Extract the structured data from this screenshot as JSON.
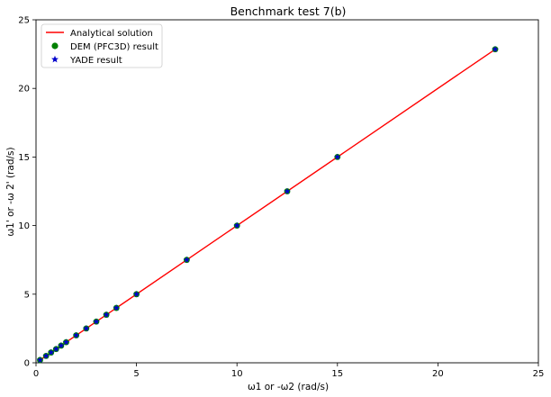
{
  "chart_data": {
    "type": "scatter",
    "title": "Benchmark test 7(b)",
    "xlabel": "ω1 or -ω2 (rad/s)",
    "ylabel": "ω1' or -ω 2' (rad/s)",
    "xlim": [
      0,
      25
    ],
    "ylim": [
      0,
      25
    ],
    "xticks": [
      0,
      5,
      10,
      15,
      20,
      25
    ],
    "yticks": [
      0,
      5,
      10,
      15,
      20,
      25
    ],
    "grid": false,
    "legend_position": "upper-left",
    "series": [
      {
        "name": "Analytical solution",
        "kind": "line",
        "color": "#ff0000",
        "x": [
          0.2,
          22.85
        ],
        "y": [
          0.2,
          22.85
        ]
      },
      {
        "name": "DEM (PFC3D) result",
        "kind": "marker-circle",
        "color": "#008000",
        "x": [
          0.2,
          0.5,
          0.75,
          1.0,
          1.25,
          1.5,
          2.0,
          2.5,
          3.0,
          3.5,
          4.0,
          5.0,
          7.5,
          10.0,
          12.5,
          15.0,
          22.85
        ],
        "y": [
          0.2,
          0.5,
          0.75,
          1.0,
          1.25,
          1.5,
          2.0,
          2.5,
          3.0,
          3.5,
          4.0,
          5.0,
          7.5,
          10.0,
          12.5,
          15.0,
          22.85
        ]
      },
      {
        "name": "YADE result",
        "kind": "marker-star",
        "color": "#0000cc",
        "x": [
          0.2,
          0.5,
          0.75,
          1.0,
          1.25,
          1.5,
          2.0,
          2.5,
          3.0,
          3.5,
          4.0,
          5.0,
          7.5,
          10.0,
          12.5,
          15.0,
          22.85
        ],
        "y": [
          0.2,
          0.5,
          0.75,
          1.0,
          1.25,
          1.5,
          2.0,
          2.5,
          3.0,
          3.5,
          4.0,
          5.0,
          7.5,
          10.0,
          12.5,
          15.0,
          22.85
        ]
      }
    ]
  }
}
